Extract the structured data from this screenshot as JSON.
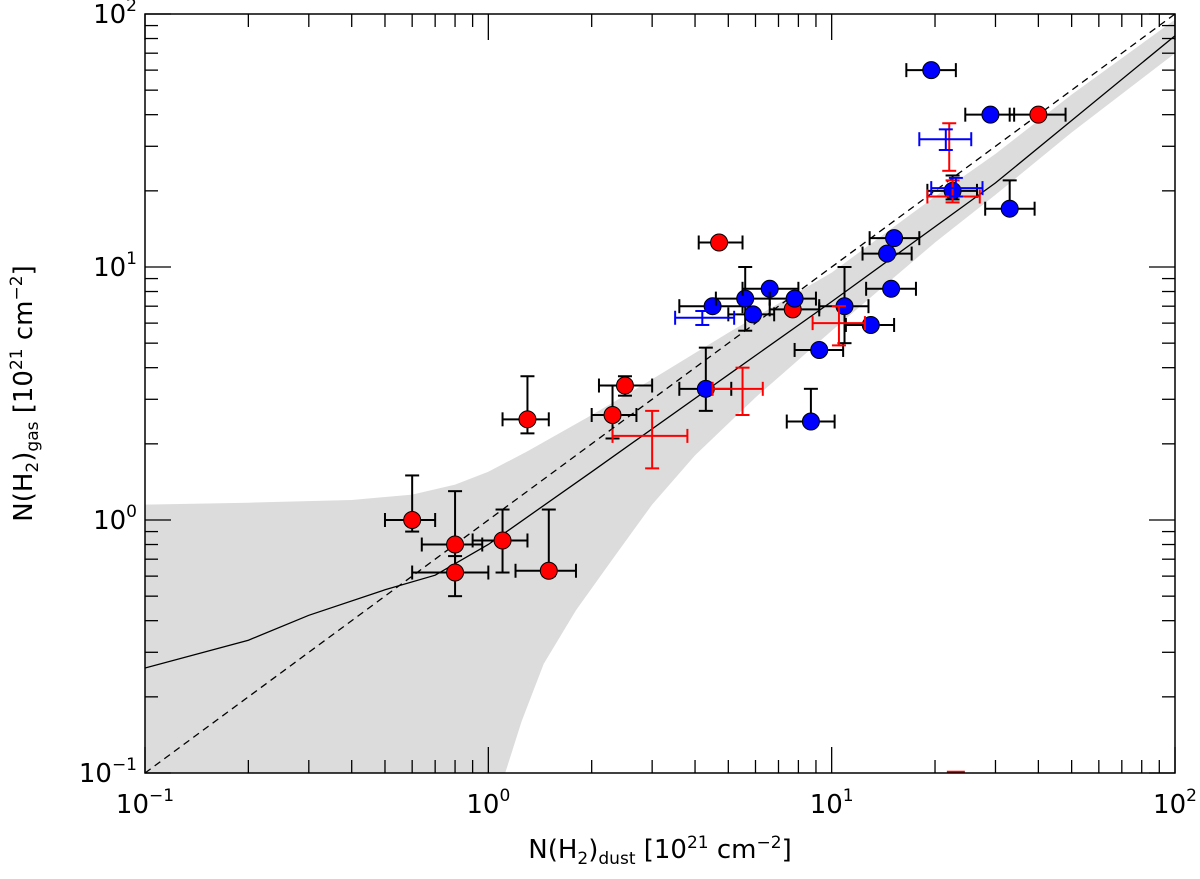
{
  "chart_data": {
    "type": "scatter",
    "title": "",
    "xlabel": {
      "main": "N(H",
      "sub1": "2",
      "mid": ")",
      "sub2": "dust",
      "bracket": " [10",
      "sup": "21",
      "unit": " cm",
      "sup2": "−2",
      "close": "]"
    },
    "ylabel": {
      "main": "N(H",
      "sub1": "2",
      "mid": ")",
      "sub2": "gas",
      "bracket": " [10",
      "sup": "21",
      "unit": " cm",
      "sup2": "−2",
      "close": "]"
    },
    "x_scale": "log",
    "y_scale": "log",
    "xlim": [
      0.1,
      100
    ],
    "ylim": [
      0.1,
      100
    ],
    "x_ticks": [
      {
        "value": 0.1,
        "base": "10",
        "exp": "−1"
      },
      {
        "value": 1,
        "base": "10",
        "exp": "0"
      },
      {
        "value": 10,
        "base": "10",
        "exp": "1"
      },
      {
        "value": 100,
        "base": "10",
        "exp": "2"
      }
    ],
    "y_ticks": [
      {
        "value": 0.1,
        "base": "10",
        "exp": "−1"
      },
      {
        "value": 1,
        "base": "10",
        "exp": "0"
      },
      {
        "value": 10,
        "base": "10",
        "exp": "1"
      },
      {
        "value": 100,
        "base": "10",
        "exp": "2"
      }
    ],
    "grid": false,
    "colors": {
      "red": "#ff0000",
      "blue": "#0000ff",
      "band": "#dcdcdc",
      "errorbar": "#000000"
    },
    "one_to_one_line": {
      "style": "dashed",
      "x": [
        0.1,
        100
      ],
      "y": [
        0.1,
        100
      ]
    },
    "fit_line": {
      "style": "solid",
      "x": [
        0.1,
        0.2,
        0.3,
        0.5,
        0.7,
        1,
        2,
        5,
        10,
        30,
        100
      ],
      "y": [
        0.26,
        0.335,
        0.42,
        0.53,
        0.605,
        0.8,
        1.55,
        3.75,
        7.3,
        21.5,
        82
      ]
    },
    "band": {
      "upper": {
        "x": [
          0.1,
          0.2,
          0.4,
          0.6,
          0.8,
          1,
          1.3,
          2,
          3,
          5,
          10,
          20,
          30,
          50,
          100
        ],
        "y": [
          1.15,
          1.17,
          1.2,
          1.26,
          1.38,
          1.55,
          1.87,
          2.6,
          3.6,
          5.5,
          9.5,
          19,
          28,
          48,
          95
        ]
      },
      "lower": {
        "x": [
          1.12,
          1.25,
          1.45,
          1.8,
          2.3,
          3,
          4,
          6,
          10,
          20,
          30,
          50,
          100
        ],
        "y": [
          0.1,
          0.16,
          0.27,
          0.44,
          0.7,
          1.15,
          1.8,
          3.05,
          5.6,
          12.5,
          19.3,
          34,
          70
        ]
      }
    },
    "series": [
      {
        "color": "red",
        "marker": "circle",
        "points": [
          {
            "x": 0.6,
            "y": 1.0,
            "xerr": [
              0.5,
              0.7
            ],
            "yerr": [
              0.9,
              1.5
            ]
          },
          {
            "x": 0.8,
            "y": 0.8,
            "xerr": [
              0.64,
              0.96
            ],
            "yerr": [
              0.63,
              1.3
            ]
          },
          {
            "x": 0.8,
            "y": 0.62,
            "xerr": [
              0.6,
              1.0
            ],
            "yerr": [
              0.5,
              0.72
            ]
          },
          {
            "x": 1.1,
            "y": 0.83,
            "xerr": [
              0.9,
              1.3
            ],
            "yerr": [
              0.62,
              1.1
            ]
          },
          {
            "x": 1.5,
            "y": 0.63,
            "xerr": [
              1.2,
              1.8
            ],
            "yerr": [
              0.6,
              1.1
            ]
          },
          {
            "x": 1.3,
            "y": 2.5,
            "xerr": [
              1.1,
              1.5
            ],
            "yerr": [
              2.2,
              3.7
            ]
          },
          {
            "x": 2.3,
            "y": 2.6,
            "xerr": [
              2.0,
              2.7
            ],
            "yerr": [
              2.1,
              3.4
            ]
          },
          {
            "x": 2.5,
            "y": 3.4,
            "xerr": [
              2.1,
              3.0
            ],
            "yerr": [
              3.1,
              3.7
            ]
          },
          {
            "x": 4.7,
            "y": 12.5,
            "xerr": [
              4.1,
              5.5
            ],
            "yerr": [
              12.5,
              12.5
            ]
          },
          {
            "x": 7.7,
            "y": 6.8,
            "xerr": [
              6.6,
              9.2
            ],
            "yerr": [
              6.8,
              6.8
            ]
          },
          {
            "x": 40,
            "y": 40,
            "xerr": [
              33,
              48
            ],
            "yerr": [
              40,
              40
            ]
          }
        ]
      },
      {
        "color": "blue",
        "marker": "circle",
        "points": [
          {
            "x": 4.3,
            "y": 3.3,
            "xerr": [
              3.6,
              5.1
            ],
            "yerr": [
              2.7,
              4.8
            ]
          },
          {
            "x": 4.5,
            "y": 7.0,
            "xerr": [
              3.6,
              5.5
            ],
            "yerr": [
              7.0,
              7.0
            ]
          },
          {
            "x": 5.6,
            "y": 7.5,
            "xerr": [
              4.6,
              6.6
            ],
            "yerr": [
              5.6,
              10.0
            ]
          },
          {
            "x": 5.9,
            "y": 6.5,
            "xerr": [
              5.0,
              6.8
            ],
            "yerr": [
              6.5,
              6.5
            ]
          },
          {
            "x": 6.6,
            "y": 8.2,
            "xerr": [
              5.5,
              8.0
            ],
            "yerr": [
              8.2,
              8.2
            ]
          },
          {
            "x": 7.8,
            "y": 7.5,
            "xerr": [
              6.6,
              9.0
            ],
            "yerr": [
              7.5,
              7.5
            ]
          },
          {
            "x": 8.7,
            "y": 2.45,
            "xerr": [
              7.4,
              10.2
            ],
            "yerr": [
              2.45,
              3.3
            ]
          },
          {
            "x": 9.2,
            "y": 4.7,
            "xerr": [
              7.8,
              10.8
            ],
            "yerr": [
              4.7,
              4.7
            ]
          },
          {
            "x": 10.9,
            "y": 7.0,
            "xerr": [
              9.2,
              12.8
            ],
            "yerr": [
              5.0,
              10.0
            ]
          },
          {
            "x": 13.0,
            "y": 5.9,
            "xerr": [
              11.0,
              15.2
            ],
            "yerr": [
              5.9,
              5.9
            ]
          },
          {
            "x": 14.5,
            "y": 11.3,
            "xerr": [
              12.3,
              17.1
            ],
            "yerr": [
              11.3,
              11.3
            ]
          },
          {
            "x": 14.9,
            "y": 8.2,
            "xerr": [
              12.6,
              17.6
            ],
            "yerr": [
              8.2,
              8.2
            ]
          },
          {
            "x": 15.2,
            "y": 13.0,
            "xerr": [
              12.9,
              18.0
            ],
            "yerr": [
              13.0,
              13.0
            ]
          },
          {
            "x": 19.5,
            "y": 60,
            "xerr": [
              16.5,
              23.0
            ],
            "yerr": [
              60,
              60
            ]
          },
          {
            "x": 22.5,
            "y": 20,
            "xerr": [
              19.0,
              26.5
            ],
            "yerr": [
              18.5,
              23.0
            ]
          },
          {
            "x": 29,
            "y": 40,
            "xerr": [
              24.5,
              34.0
            ],
            "yerr": [
              40,
              40
            ]
          },
          {
            "x": 33,
            "y": 17,
            "xerr": [
              28.0,
              39.0
            ],
            "yerr": [
              17,
              22
            ]
          }
        ]
      },
      {
        "color": "red",
        "marker": "cross",
        "points": [
          {
            "x": 3.0,
            "y": 2.15,
            "xerr": [
              2.3,
              3.8
            ],
            "yerr": [
              1.6,
              2.7
            ]
          },
          {
            "x": 5.5,
            "y": 3.3,
            "xerr": [
              4.5,
              6.3
            ],
            "yerr": [
              2.6,
              4.0
            ]
          },
          {
            "x": 10.5,
            "y": 6.0,
            "xerr": [
              8.8,
              12.5
            ],
            "yerr": [
              4.9,
              7.0
            ]
          },
          {
            "x": 22.5,
            "y": 19,
            "xerr": [
              19.0,
              27.0
            ],
            "yerr": [
              18.0,
              22.0
            ]
          },
          {
            "x": 22.0,
            "y": 30,
            "xerr": [
              22.0,
              22.0
            ],
            "yerr": [
              24,
              37
            ]
          }
        ]
      },
      {
        "color": "blue",
        "marker": "cross",
        "points": [
          {
            "x": 4.2,
            "y": 6.3,
            "xerr": [
              3.5,
              5.2
            ],
            "yerr": [
              5.9,
              6.7
            ]
          },
          {
            "x": 21.5,
            "y": 32,
            "xerr": [
              18.0,
              25.5
            ],
            "yerr": [
              29,
              35
            ]
          },
          {
            "x": 23.0,
            "y": 20.5,
            "xerr": [
              19.5,
              27.5
            ],
            "yerr": [
              19.0,
              22.5
            ]
          }
        ]
      }
    ],
    "offscale_markers": [
      {
        "x": 23,
        "color": "red"
      }
    ]
  }
}
